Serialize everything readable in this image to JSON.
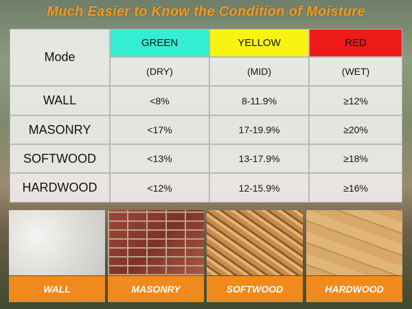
{
  "title": "Much Easier to Know the Condition of Moisture",
  "table": {
    "header": [
      "Mode",
      "GREEN",
      "YELLOW",
      "RED"
    ],
    "subheader": [
      "(DRY)",
      "(MID)",
      "(WET)"
    ],
    "rows": [
      [
        "WALL",
        "<8%",
        "8-11.9%",
        "≥12%"
      ],
      [
        "MASONRY",
        "<17%",
        "17-19.9%",
        "≥20%"
      ],
      [
        "SOFTWOOD",
        "<13%",
        "13-17.9%",
        "≥18%"
      ],
      [
        "HARDWOOD",
        "<12%",
        "12-15.9%",
        "≥16%"
      ]
    ]
  },
  "materials": [
    "WALL",
    "MASONRY",
    "SOFTWOOD",
    "HARDWOOD"
  ]
}
